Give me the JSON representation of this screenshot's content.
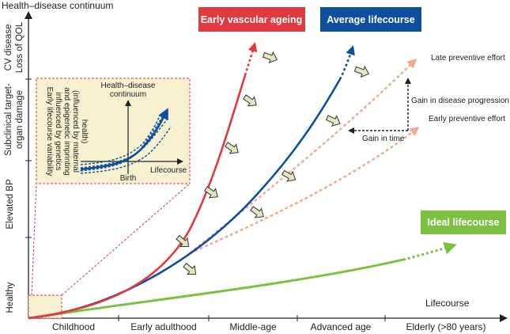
{
  "y_axis": {
    "title": "Health–disease continuum",
    "stages": [
      "Healthy",
      "Elevated BP",
      "Subclinical target-",
      "organ damage",
      "CV disease",
      "Loss of QOL"
    ]
  },
  "x_axis": {
    "title": "Lifecourse",
    "stages": [
      "Childhood",
      "Early adulthood",
      "Middle-age",
      "Advanced age",
      "Elderly (>80 years)"
    ]
  },
  "curves": {
    "early_vascular_ageing": "Early vascular ageing",
    "average_lifecourse": "Average lifecourse",
    "ideal_lifecourse": "Ideal lifecourse"
  },
  "annotations": {
    "late_preventive": "Late preventive effort",
    "early_preventive": "Early preventive effort",
    "gain_progression": "Gain in disease progression",
    "gain_time": "Gain in time"
  },
  "inset": {
    "y_label_1": "Health–disease",
    "y_label_2": "continuum",
    "x_label": "Lifecourse",
    "birth_label": "Birth",
    "side_text": [
      "Early lifecourse variability",
      "influenced by genetics",
      "and epigenetic imprinting",
      "(influenced by maternal",
      "health)"
    ]
  },
  "colors": {
    "red": "#e03a3e",
    "blue": "#0d4f9c",
    "green": "#7dc142",
    "peach": "#f2a98c",
    "inset_bg": "#f7f1d2",
    "inset_border": "#e03a3e",
    "arrow_fill": "#dfe6c2"
  }
}
